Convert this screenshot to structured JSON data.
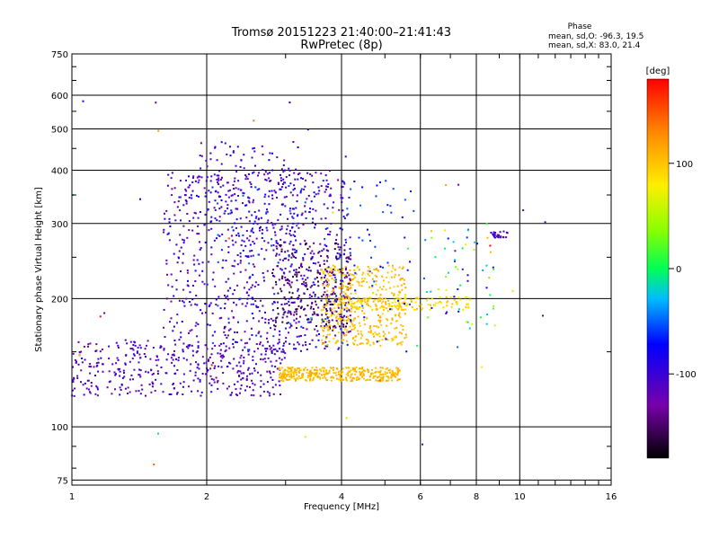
{
  "chart_data": {
    "type": "scatter",
    "title": "Tromsø 20151223 21:40:00–21:41:43",
    "subtitle": "RwPretec (8p)",
    "xlabel": "Frequency [MHz]",
    "ylabel": "Stationary phase Virtual Height [km]",
    "x_scale": "log",
    "y_scale": "log",
    "xlim": [
      1,
      16
    ],
    "ylim": [
      73,
      750
    ],
    "x_ticks": [
      1,
      2,
      4,
      6,
      8,
      10,
      16
    ],
    "y_ticks": [
      75,
      100,
      200,
      300,
      400,
      500,
      600,
      750
    ],
    "grid": true,
    "colorbar": {
      "label": "[deg]",
      "range": [
        -180,
        180
      ],
      "ticks": [
        100,
        0,
        -100
      ]
    },
    "phase_stats": {
      "heading": "Phase",
      "line_o": "mean, sd,O: -96.3, 19.5",
      "line_x": "mean, sd,X:  83.0, 21.4"
    },
    "clusters": [
      {
        "note": "low blue trace",
        "x": [
          1.0,
          3.0
        ],
        "y": [
          118,
          160
        ],
        "phase": [
          -130,
          -90
        ],
        "n": 420
      },
      {
        "note": "blue F region cloud",
        "x": [
          1.6,
          4.2
        ],
        "y": [
          150,
          400
        ],
        "phase": [
          -140,
          -80
        ],
        "n": 700
      },
      {
        "note": "dark purple dense",
        "x": [
          2.8,
          4.2
        ],
        "y": [
          170,
          270
        ],
        "phase": [
          -165,
          -135
        ],
        "n": 260
      },
      {
        "note": "blue upper spread",
        "x": [
          1.9,
          3.2
        ],
        "y": [
          260,
          470
        ],
        "phase": [
          -125,
          -75
        ],
        "n": 160
      },
      {
        "note": "yellow X trace 135",
        "x": [
          2.9,
          5.4
        ],
        "y": [
          128,
          138
        ],
        "phase": [
          95,
          115
        ],
        "n": 340
      },
      {
        "note": "yellow X upper band",
        "x": [
          3.6,
          5.6
        ],
        "y": [
          155,
          240
        ],
        "phase": [
          90,
          115
        ],
        "n": 420
      },
      {
        "note": "yellow-green 200 line",
        "x": [
          4.0,
          7.8
        ],
        "y": [
          188,
          202
        ],
        "phase": [
          70,
          110
        ],
        "n": 130
      },
      {
        "note": "cyan scattered",
        "x": [
          2.0,
          5.8
        ],
        "y": [
          150,
          380
        ],
        "phase": [
          -80,
          -50
        ],
        "n": 170
      },
      {
        "note": "high freq blue trace",
        "x": [
          8.6,
          9.4
        ],
        "y": [
          278,
          288
        ],
        "phase": [
          -120,
          -90
        ],
        "n": 25
      },
      {
        "note": "mid-high freq points",
        "x": [
          6.0,
          8.8
        ],
        "y": [
          170,
          300
        ],
        "phase": [
          -120,
          110
        ],
        "n": 60
      },
      {
        "note": "sparse outliers",
        "x": [
          1.0,
          12.0
        ],
        "y": [
          80,
          600
        ],
        "phase": [
          -180,
          180
        ],
        "n": 40
      }
    ]
  }
}
